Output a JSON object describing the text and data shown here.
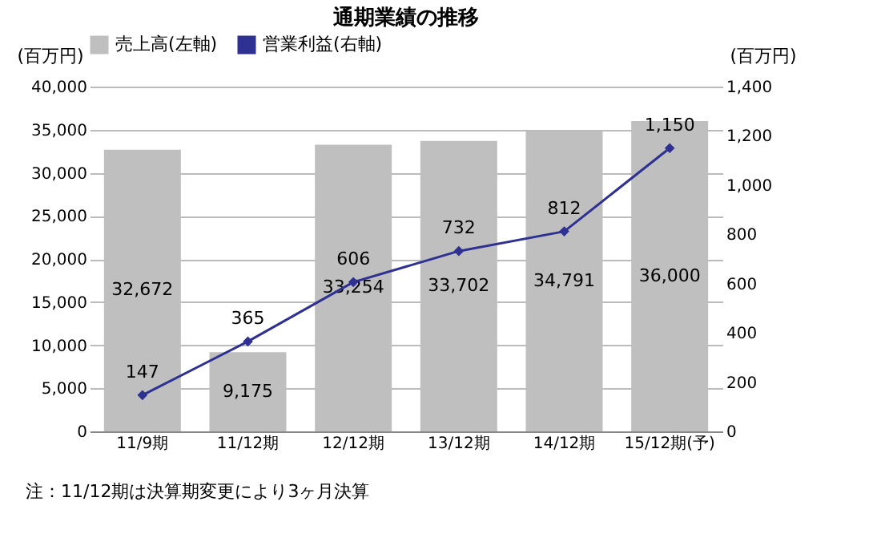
{
  "chart_data": {
    "type": "bar",
    "title": "通期業績の推移",
    "ylabel": "(百万円)",
    "y2label": "(百万円)",
    "categories": [
      "11/9期",
      "11/12期",
      "12/12期",
      "13/12期",
      "14/12期",
      "15/12期(予)"
    ],
    "series": [
      {
        "name": "売上高(左軸)",
        "color": "#bfbfbf",
        "values": [
          32672,
          9175,
          33254,
          33702,
          34791,
          36000
        ],
        "value_labels": [
          "32,672",
          "9,175",
          "33,254",
          "33,702",
          "34,791",
          "36,000"
        ]
      },
      {
        "name": "営業利益(右軸)",
        "type": "line",
        "axis": "y2",
        "color": "#2e3192",
        "values": [
          147,
          365,
          606,
          732,
          812,
          1150
        ],
        "value_labels": [
          "147",
          "365",
          "606",
          "732",
          "812",
          "1,150"
        ]
      }
    ],
    "ylim": [
      0,
      40000
    ],
    "yticks": [
      0,
      {
        "value": 5000,
        "label": "5,000"
      },
      {
        "value": 10000,
        "label": "10,000"
      },
      {
        "value": 15000,
        "label": "15,000"
      },
      {
        "value": 20000,
        "label": "20,000"
      },
      {
        "value": 25000,
        "label": "25,000"
      },
      {
        "value": 30000,
        "label": "30,000"
      },
      {
        "value": 35000,
        "label": "35,000"
      },
      {
        "value": 40000,
        "label": "40,000"
      }
    ],
    "y2lim": [
      0,
      1400
    ],
    "y2ticks": [
      0,
      200,
      400,
      600,
      800,
      {
        "value": 1000,
        "label": "1,000"
      },
      {
        "value": 1200,
        "label": "1,200"
      },
      {
        "value": 1400,
        "label": "1,400"
      }
    ],
    "grid": "y",
    "legend": "top",
    "marker": "diamond",
    "line_style": "solid",
    "annotations": [
      "注：11/12期は決算期変更により3ヶ月決算"
    ]
  }
}
